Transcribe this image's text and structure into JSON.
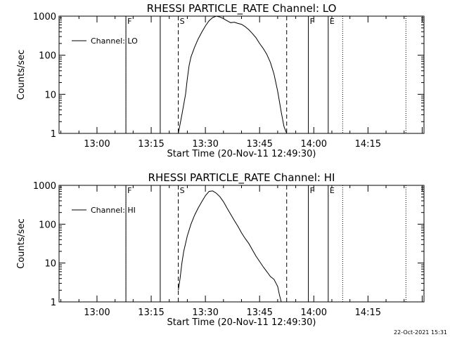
{
  "page": {
    "footer_timestamp": "22-Oct-2021 15:31"
  },
  "chart_data": [
    {
      "type": "line",
      "title": "RHESSI PARTICLE_RATE Channel: LO",
      "xlabel": "Start Time (20-Nov-11 12:49:30)",
      "ylabel": "Counts/sec",
      "yscale": "log",
      "xlim": [
        "12:49:30",
        "14:30:30"
      ],
      "ylim": [
        1,
        1000
      ],
      "x_ticks": [
        "13:00",
        "13:15",
        "13:30",
        "13:45",
        "14:00",
        "14:15"
      ],
      "y_ticks": [
        "1",
        "10",
        "100",
        "1000"
      ],
      "legend": {
        "position": "top-left"
      },
      "series": [
        {
          "name": "Channel: LO",
          "x": [
            "13:22:30",
            "13:23:30",
            "13:24:30",
            "13:25:00",
            "13:25:30",
            "13:26:00",
            "13:27:00",
            "13:28:00",
            "13:29:00",
            "13:30:00",
            "13:31:00",
            "13:32:00",
            "13:33:00",
            "13:34:00",
            "13:35:00",
            "13:36:00",
            "13:37:00",
            "13:38:00",
            "13:39:00",
            "13:40:00",
            "13:41:00",
            "13:42:00",
            "13:43:00",
            "13:44:00",
            "13:45:00",
            "13:46:00",
            "13:47:00",
            "13:48:00",
            "13:49:00",
            "13:50:00",
            "13:51:00",
            "13:51:45",
            "13:52:30"
          ],
          "y": [
            1,
            3,
            10,
            25,
            55,
            90,
            160,
            260,
            390,
            560,
            760,
            920,
            1000,
            950,
            860,
            760,
            680,
            700,
            650,
            620,
            540,
            450,
            360,
            280,
            200,
            150,
            105,
            65,
            33,
            12,
            3.5,
            1.5,
            1
          ]
        }
      ],
      "markers": [
        {
          "label": "F",
          "x": "13:08:00",
          "style": "dotted"
        },
        {
          "label": "",
          "x": "13:08:00",
          "style": "solid"
        },
        {
          "label": "",
          "x": "13:17:30",
          "style": "solid"
        },
        {
          "label": "S",
          "x": "13:22:30",
          "style": "dashed"
        },
        {
          "label": "",
          "x": "13:52:30",
          "style": "dashed"
        },
        {
          "label": "F",
          "x": "13:58:30",
          "style": "solid"
        },
        {
          "label": "E",
          "x": "14:04:00",
          "style": "solid"
        },
        {
          "label": "",
          "x": "14:08:00",
          "style": "dotted"
        },
        {
          "label": "",
          "x": "14:25:30",
          "style": "dotted"
        }
      ]
    },
    {
      "type": "line",
      "title": "RHESSI PARTICLE_RATE Channel: HI",
      "xlabel": "Start Time (20-Nov-11 12:49:30)",
      "ylabel": "Counts/sec",
      "yscale": "log",
      "xlim": [
        "12:49:30",
        "14:30:30"
      ],
      "ylim": [
        1,
        1000
      ],
      "x_ticks": [
        "13:00",
        "13:15",
        "13:30",
        "13:45",
        "14:00",
        "14:15"
      ],
      "y_ticks": [
        "1",
        "10",
        "100",
        "1000"
      ],
      "legend": {
        "position": "top-left"
      },
      "series": [
        {
          "name": "Channel: HI",
          "x": [
            "13:22:30",
            "13:23:00",
            "13:23:30",
            "13:24:00",
            "13:25:00",
            "13:26:00",
            "13:27:00",
            "13:28:00",
            "13:29:00",
            "13:30:00",
            "13:31:00",
            "13:32:00",
            "13:33:00",
            "13:34:00",
            "13:35:00",
            "13:36:00",
            "13:37:00",
            "13:38:00",
            "13:39:00",
            "13:40:00",
            "13:41:00",
            "13:42:00",
            "13:43:00",
            "13:44:00",
            "13:45:00",
            "13:46:00",
            "13:47:00",
            "13:48:00",
            "13:49:00",
            "13:50:00",
            "13:50:30",
            "13:51:00"
          ],
          "y": [
            2,
            4,
            10,
            20,
            50,
            100,
            170,
            260,
            380,
            540,
            700,
            720,
            630,
            510,
            380,
            260,
            180,
            125,
            88,
            60,
            43,
            32,
            22,
            15,
            11,
            8,
            6,
            4.5,
            3.8,
            2.5,
            1.5,
            1
          ]
        }
      ],
      "markers": [
        {
          "label": "F",
          "x": "13:08:00",
          "style": "dotted"
        },
        {
          "label": "",
          "x": "13:08:00",
          "style": "solid"
        },
        {
          "label": "",
          "x": "13:17:30",
          "style": "solid"
        },
        {
          "label": "S",
          "x": "13:22:30",
          "style": "dashed"
        },
        {
          "label": "",
          "x": "13:52:30",
          "style": "dashed"
        },
        {
          "label": "F",
          "x": "13:58:30",
          "style": "solid"
        },
        {
          "label": "E",
          "x": "14:04:00",
          "style": "solid"
        },
        {
          "label": "",
          "x": "14:08:00",
          "style": "dotted"
        },
        {
          "label": "",
          "x": "14:25:30",
          "style": "dotted"
        }
      ]
    }
  ]
}
